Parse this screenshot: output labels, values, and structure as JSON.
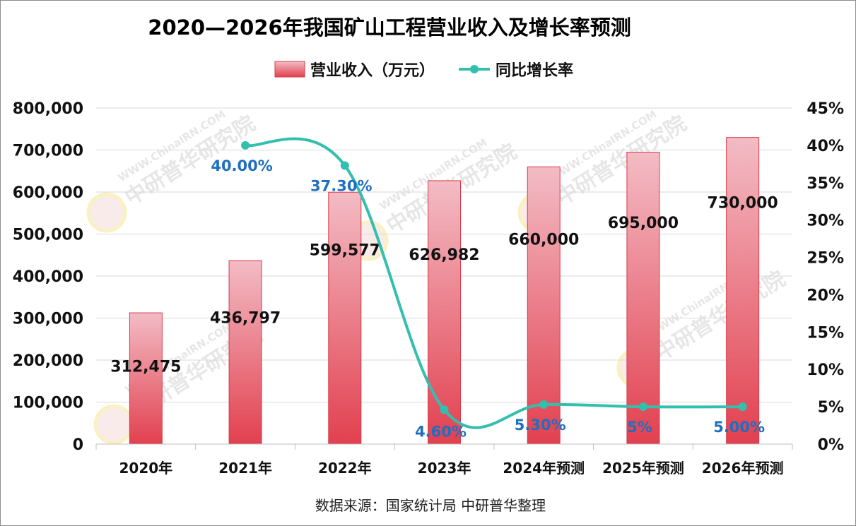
{
  "chart_data": {
    "type": "bar",
    "title": "2020—2026年我国矿山工程营业收入及增长率预测",
    "categories": [
      "2020年",
      "2021年",
      "2022年",
      "2023年",
      "2024年预测",
      "2025年预测",
      "2026年预测"
    ],
    "series": [
      {
        "name": "营业收入（万元）",
        "type": "bar",
        "axis": "left",
        "values": [
          312475,
          436797,
          599577,
          626982,
          660000,
          695000,
          730000
        ],
        "labels": [
          "312,475",
          "436,797",
          "599,577",
          "626,982",
          "660,000",
          "695,000",
          "730,000"
        ]
      },
      {
        "name": "同比增长率",
        "type": "line",
        "axis": "right",
        "values": [
          null,
          40.0,
          37.3,
          4.6,
          5.3,
          5.0,
          5.0
        ],
        "labels": [
          "",
          "40.00%",
          "37.30%",
          "4.60%",
          "5.30%",
          "5%",
          "5.00%"
        ]
      }
    ],
    "y_left": {
      "lim": [
        0,
        800000
      ],
      "ticks": [
        "0",
        "100,000",
        "200,000",
        "300,000",
        "400,000",
        "500,000",
        "600,000",
        "700,000",
        "800,000"
      ]
    },
    "y_right": {
      "lim": [
        0,
        45
      ],
      "ticks": [
        "0%",
        "5%",
        "10%",
        "15%",
        "20%",
        "25%",
        "30%",
        "35%",
        "40%",
        "45%"
      ]
    },
    "grid": true,
    "legend_position": "top-center",
    "colors": {
      "bar_top": "#f3bcc5",
      "bar_bottom": "#e2404f",
      "bar_edge": "#d83a48",
      "line": "#33bfae",
      "rate_label": "#1f6fbf"
    }
  },
  "source": "数据来源：国家统计局 中研普华整理",
  "watermark": {
    "text": "中研普华研究院",
    "site": "WWW.ChinaIRN.COM",
    "logo": "CIRN"
  }
}
